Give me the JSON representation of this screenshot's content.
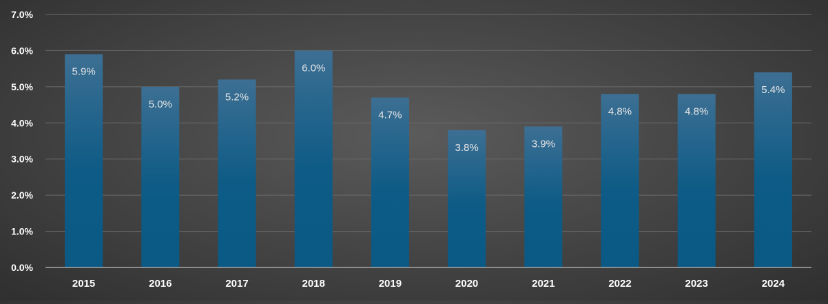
{
  "chart_data": {
    "type": "bar",
    "title": "",
    "xlabel": "",
    "ylabel": "",
    "categories": [
      "2015",
      "2016",
      "2017",
      "2018",
      "2019",
      "2020",
      "2021",
      "2022",
      "2023",
      "2024"
    ],
    "values": [
      5.9,
      5.0,
      5.2,
      6.0,
      4.7,
      3.8,
      3.9,
      4.8,
      4.8,
      5.4
    ],
    "data_labels": [
      "5.9%",
      "5.0%",
      "5.2%",
      "6.0%",
      "4.7%",
      "3.8%",
      "3.9%",
      "4.8%",
      "4.8%",
      "5.4%"
    ],
    "y_ticks": [
      0,
      1,
      2,
      3,
      4,
      5,
      6,
      7
    ],
    "y_tick_labels": [
      "0.0%",
      "1.0%",
      "2.0%",
      "3.0%",
      "4.0%",
      "5.0%",
      "6.0%",
      "7.0%"
    ],
    "ylim": [
      0,
      7
    ],
    "grid": true,
    "legend": "none",
    "colors": {
      "bar_top": "#3d6f93",
      "bar_bottom": "#0a5a85",
      "gridline": "#6b6b6b",
      "axis_line": "#a8a8a8",
      "tick_label": "#ffffff",
      "data_label": "#e6e6e6"
    }
  }
}
